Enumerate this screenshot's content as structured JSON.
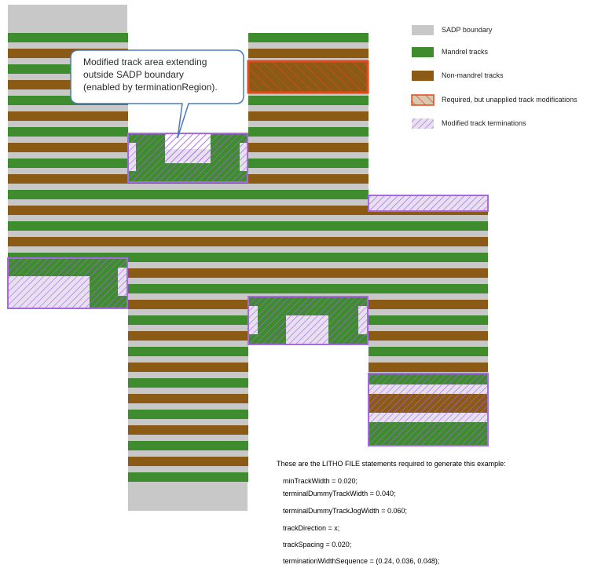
{
  "legend": {
    "sadp_boundary": "SADP boundary",
    "mandrel_tracks": "Mandrel tracks",
    "non_mandrel_tracks": "Non-mandrel tracks",
    "required_unapplied": "Required, but unapplied track modifications",
    "modified_terminations": "Modified track terminations"
  },
  "callout": {
    "line1": "Modified track area extending",
    "line2": "outside SADP boundary",
    "line3": "(enabled by terminationRegion)."
  },
  "litho": {
    "intro": "These are the LITHO FILE statements required to generate this example:",
    "statements": [
      "minTrackWidth = 0.020;",
      "terminalDummyTrackWidth = 0.040;",
      "terminalDummyTrackJogWidth = 0.060;",
      "trackDirection = x;",
      "trackSpacing = 0.020;",
      "terminationWidthSequence = (0.24, 0.036, 0.048);"
    ]
  },
  "colors": {
    "sadp_gray": "#c8c8c8",
    "mandrel_green": "#3f8c2e",
    "non_mandrel_brown": "#8b5a14",
    "unapplied_red": "#e04a1c",
    "termination_purple": "#a56ae0",
    "callout_border": "#4a78c0"
  }
}
